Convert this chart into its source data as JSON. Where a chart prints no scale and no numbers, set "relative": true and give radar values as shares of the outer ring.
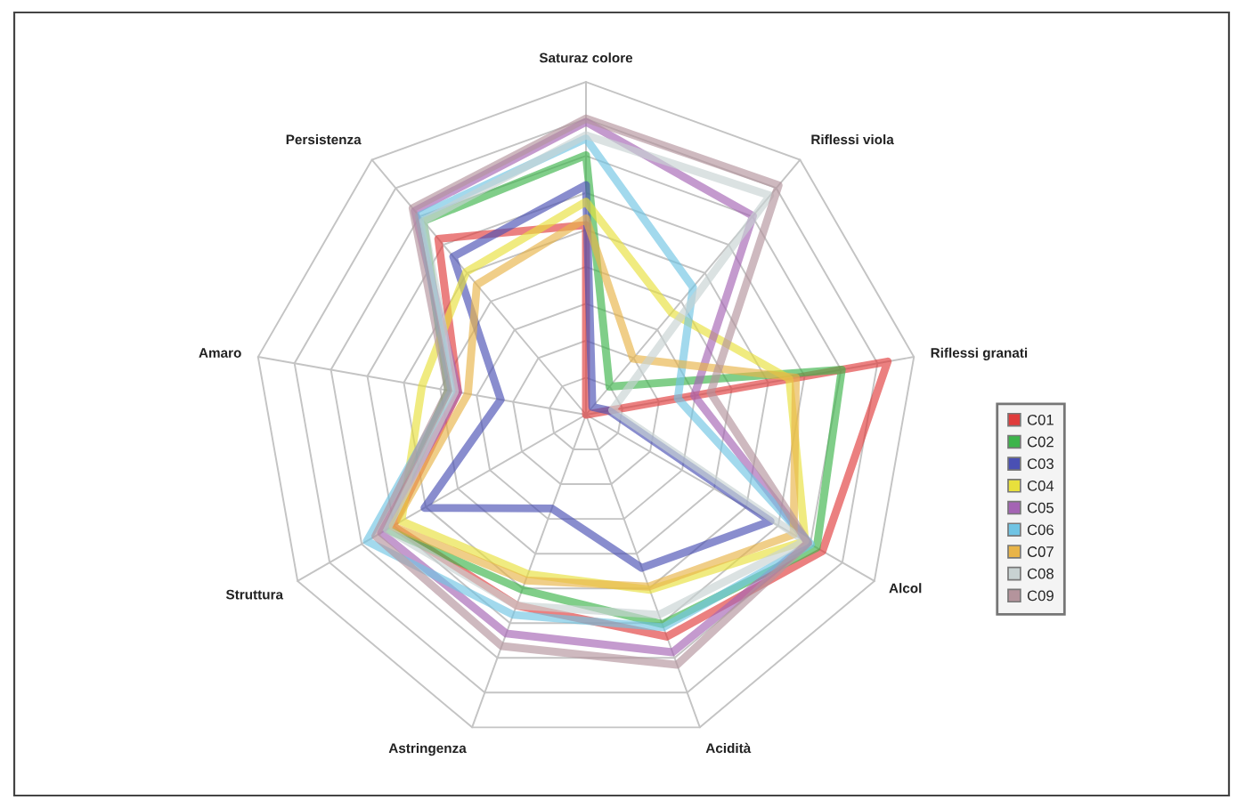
{
  "chart_data": {
    "type": "radar",
    "relative": true,
    "grid": true,
    "legend": "right",
    "categories": [
      "Saturaz colore",
      "Riflessi viola",
      "Riflessi granati",
      "Alcol",
      "Acidità",
      "Astringenza",
      "Struttura",
      "Amaro",
      "Persistenza"
    ],
    "series": [
      {
        "name": "C01",
        "color": "#e03c3c",
        "values": [
          0.57,
          0,
          0.92,
          0.82,
          0.71,
          0.61,
          0.67,
          0.39,
          0.69
        ]
      },
      {
        "name": "C02",
        "color": "#3cb44a",
        "values": [
          0.78,
          0.11,
          0.78,
          0.8,
          0.67,
          0.56,
          0.69,
          0.42,
          0.76
        ]
      },
      {
        "name": "C03",
        "color": "#4a50b4",
        "values": [
          0.69,
          0.03,
          0.07,
          0.64,
          0.49,
          0.3,
          0.56,
          0.26,
          0.62
        ]
      },
      {
        "name": "C04",
        "color": "#e8e03c",
        "values": [
          0.64,
          0.4,
          0.62,
          0.76,
          0.56,
          0.51,
          0.64,
          0.5,
          0.56
        ]
      },
      {
        "name": "C05",
        "color": "#a464b4",
        "values": [
          0.88,
          0.78,
          0.33,
          0.77,
          0.76,
          0.7,
          0.71,
          0.39,
          0.8
        ]
      },
      {
        "name": "C06",
        "color": "#70c4e4",
        "values": [
          0.83,
          0.5,
          0.28,
          0.78,
          0.68,
          0.64,
          0.76,
          0.41,
          0.78
        ]
      },
      {
        "name": "C07",
        "color": "#e8b448",
        "values": [
          0.59,
          0.22,
          0.64,
          0.72,
          0.55,
          0.53,
          0.67,
          0.36,
          0.51
        ]
      },
      {
        "name": "C08",
        "color": "#c8d2d2",
        "values": [
          0.84,
          0.86,
          0.08,
          0.76,
          0.64,
          0.61,
          0.69,
          0.4,
          0.76
        ]
      },
      {
        "name": "C09",
        "color": "#b4949c",
        "values": [
          0.89,
          0.9,
          0.38,
          0.77,
          0.8,
          0.74,
          0.73,
          0.42,
          0.81
        ]
      }
    ]
  }
}
